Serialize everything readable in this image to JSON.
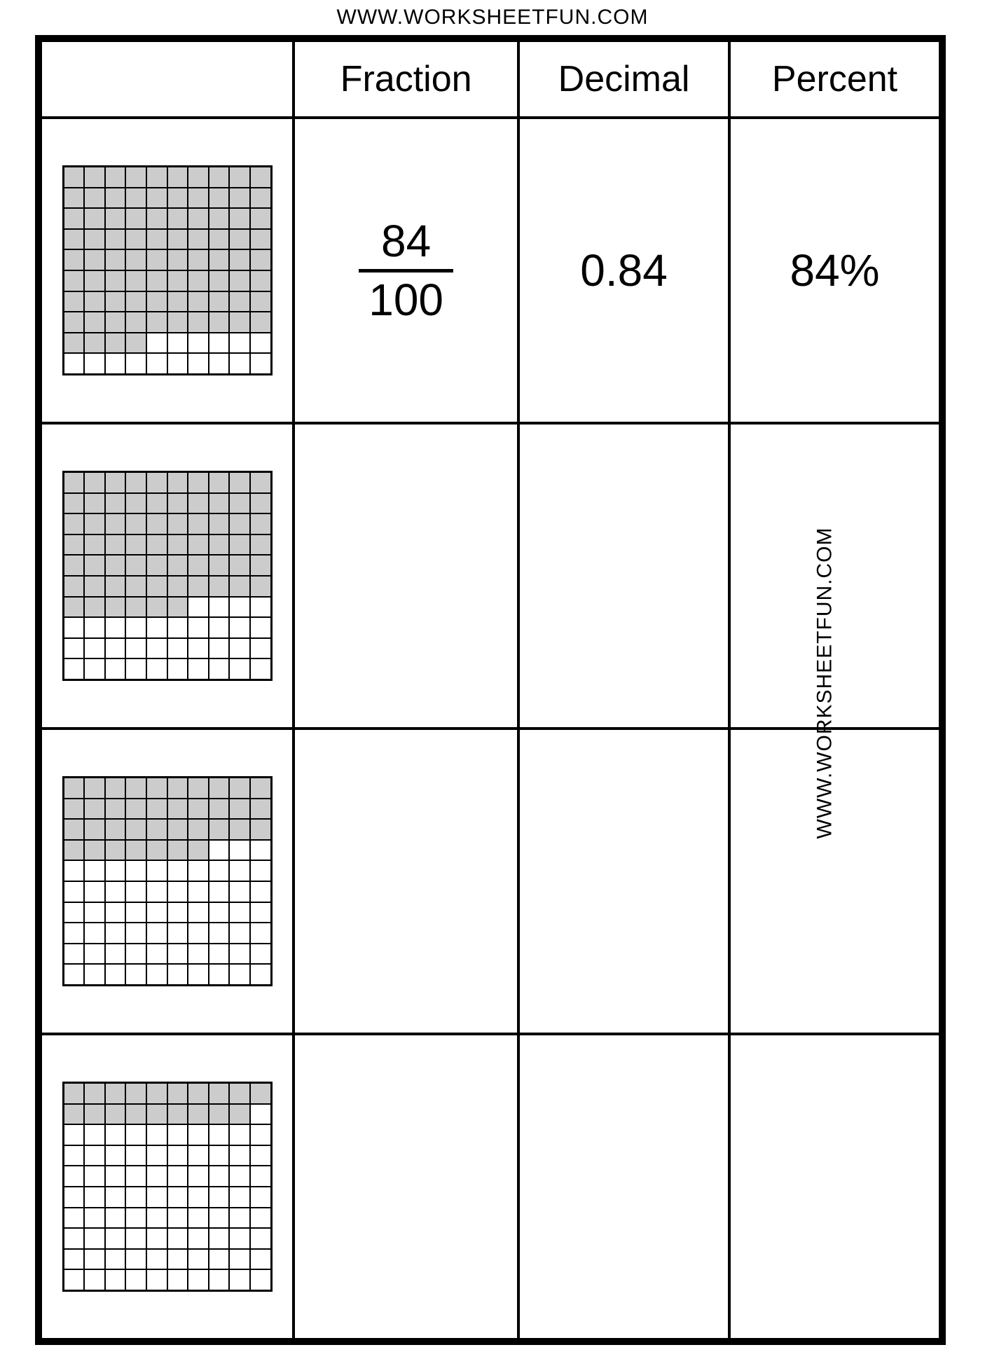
{
  "urls": {
    "top": "WWW.WORKSHEETFUN.COM",
    "side": "WWW.WORKSHEETFUN.COM"
  },
  "headers": {
    "grid": "",
    "fraction": "Fraction",
    "decimal": "Decimal",
    "percent": "Percent"
  },
  "grid_style": {
    "rows": 10,
    "cols": 10,
    "shaded_color": "#cccccc",
    "unshaded_color": "#ffffff",
    "line_color": "#000000"
  },
  "rows": [
    {
      "shaded": 84,
      "fraction": {
        "numerator": "84",
        "denominator": "100"
      },
      "decimal": "0.84",
      "percent": "84%"
    },
    {
      "shaded": 66,
      "fraction": {
        "numerator": "",
        "denominator": ""
      },
      "decimal": "",
      "percent": ""
    },
    {
      "shaded": 37,
      "fraction": {
        "numerator": "",
        "denominator": ""
      },
      "decimal": "",
      "percent": ""
    },
    {
      "shaded": 19,
      "fraction": {
        "numerator": "",
        "denominator": ""
      },
      "decimal": "",
      "percent": ""
    }
  ]
}
